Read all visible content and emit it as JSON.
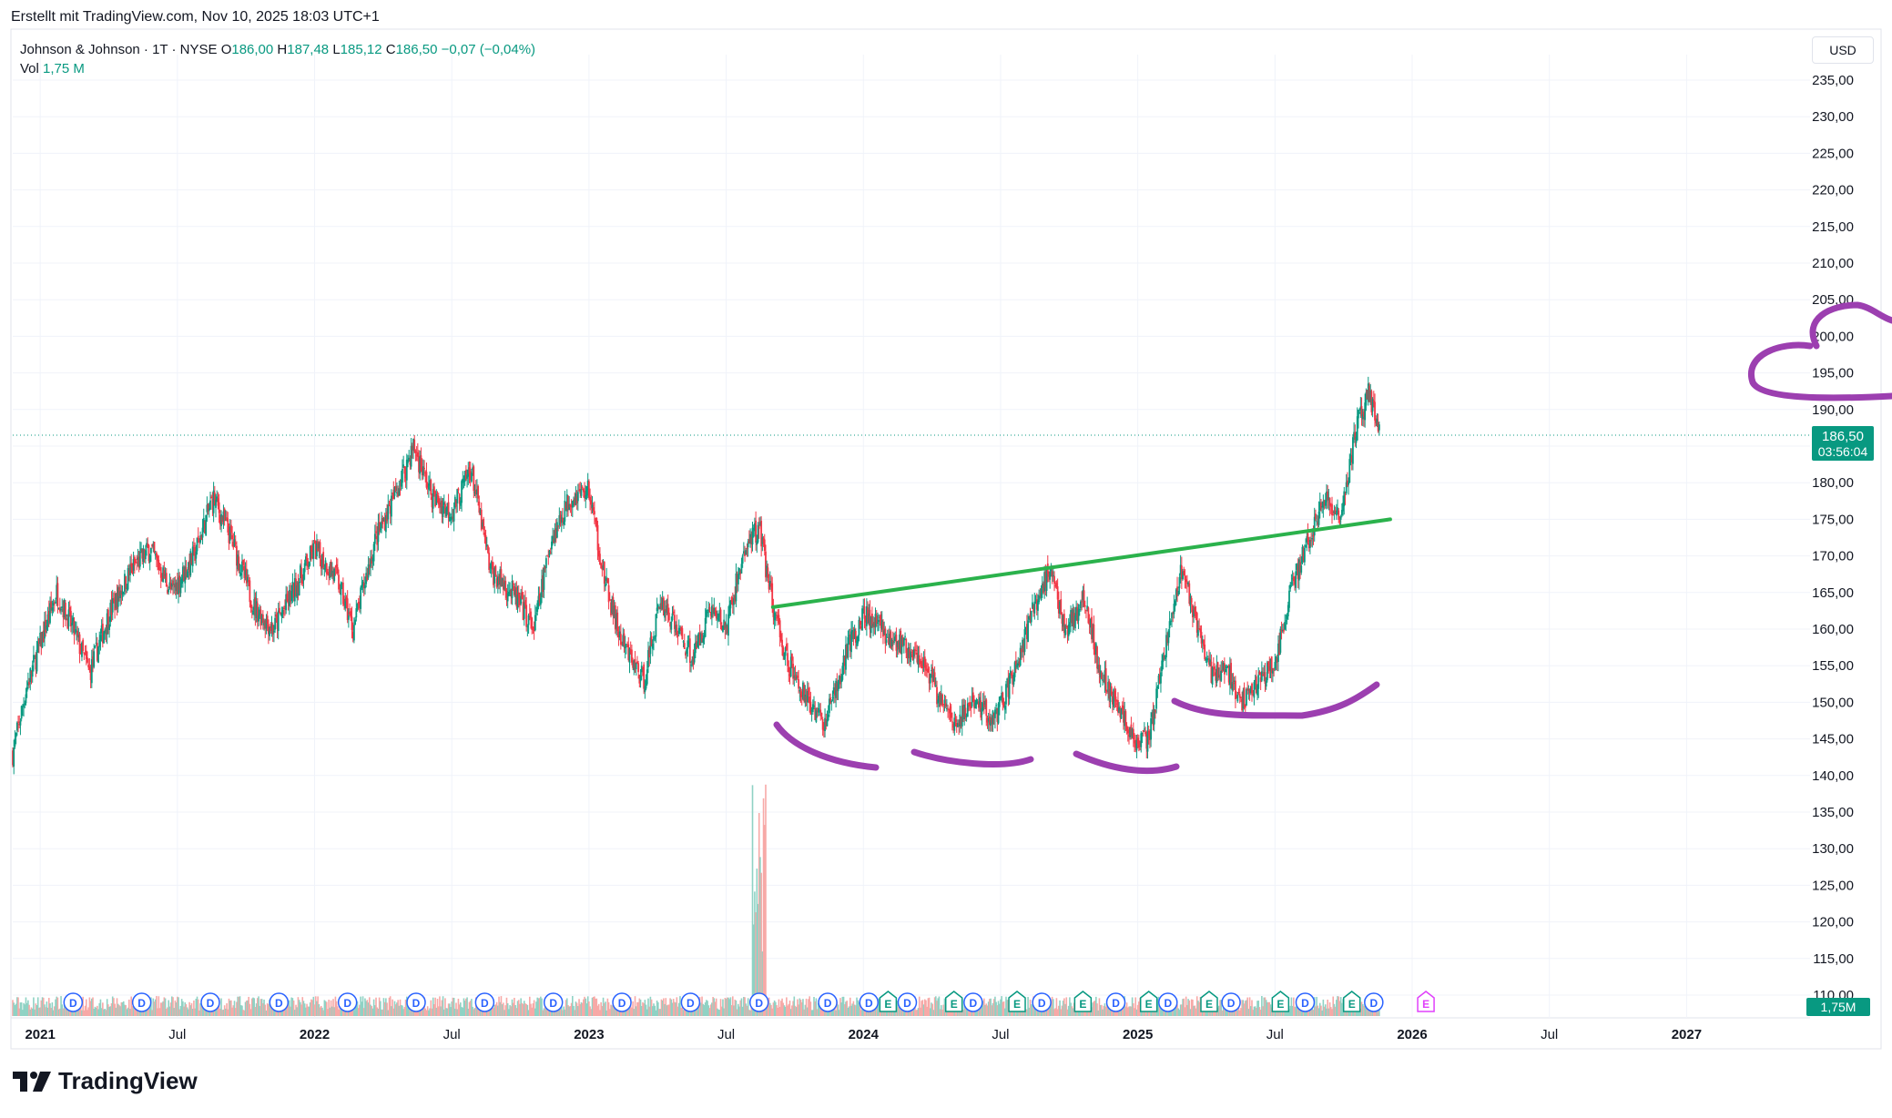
{
  "header": {
    "created_by": "Erstellt mit TradingView.com, Nov 10, 2025 18:03 UTC+1"
  },
  "legend": {
    "symbol": "Johnson & Johnson · 1T · NYSE",
    "o_label": "O",
    "o_value": "186,00",
    "h_label": "H",
    "h_value": "187,48",
    "l_label": "L",
    "l_value": "185,12",
    "c_label": "C",
    "c_value": "186,50",
    "change": "−0,07 (−0,04%)",
    "vol_label": "Vol",
    "vol_value": "1,75 M"
  },
  "currency": "USD",
  "brand": {
    "name": "TradingView"
  },
  "colors": {
    "up": "#089981",
    "down": "#f23645",
    "trendline": "#2bb24c",
    "annotation": "#9c3fb0",
    "price_tag": "#089981",
    "earnings": "#089981",
    "dividend": "#2962ff",
    "future_earnings": "#e040fb"
  },
  "price_tag": {
    "price": "186,50",
    "countdown": "03:56:04"
  },
  "volume_tag": "1,75M",
  "chart_data": {
    "type": "candlestick",
    "title": "Johnson & Johnson · 1T · NYSE",
    "ylim": [
      110,
      235
    ],
    "y_ticks": [
      "235,00",
      "230,00",
      "225,00",
      "220,00",
      "215,00",
      "210,00",
      "205,00",
      "200,00",
      "195,00",
      "190,00",
      "185,00",
      "180,00",
      "175,00",
      "170,00",
      "165,00",
      "160,00",
      "155,00",
      "150,00",
      "145,00",
      "140,00",
      "135,00",
      "130,00",
      "125,00",
      "120,00",
      "115,00",
      "110,00"
    ],
    "x_ticks": [
      {
        "label": "2021",
        "bold": true,
        "t": 2021.0
      },
      {
        "label": "Jul",
        "bold": false,
        "t": 2021.5
      },
      {
        "label": "2022",
        "bold": true,
        "t": 2022.0
      },
      {
        "label": "Jul",
        "bold": false,
        "t": 2022.5
      },
      {
        "label": "2023",
        "bold": true,
        "t": 2023.0
      },
      {
        "label": "Jul",
        "bold": false,
        "t": 2023.5
      },
      {
        "label": "2024",
        "bold": true,
        "t": 2024.0
      },
      {
        "label": "Jul",
        "bold": false,
        "t": 2024.5
      },
      {
        "label": "2025",
        "bold": true,
        "t": 2025.0
      },
      {
        "label": "Jul",
        "bold": false,
        "t": 2025.5
      },
      {
        "label": "2026",
        "bold": true,
        "t": 2026.0
      },
      {
        "label": "Jul",
        "bold": false,
        "t": 2026.5
      },
      {
        "label": "2027",
        "bold": true,
        "t": 2027.0
      }
    ],
    "price_path": [
      [
        2020.9,
        143
      ],
      [
        2020.95,
        152
      ],
      [
        2021.0,
        158
      ],
      [
        2021.06,
        165
      ],
      [
        2021.12,
        160
      ],
      [
        2021.18,
        154
      ],
      [
        2021.25,
        162
      ],
      [
        2021.33,
        168
      ],
      [
        2021.4,
        171
      ],
      [
        2021.48,
        165
      ],
      [
        2021.56,
        170
      ],
      [
        2021.63,
        178
      ],
      [
        2021.7,
        172
      ],
      [
        2021.78,
        163
      ],
      [
        2021.85,
        160
      ],
      [
        2021.92,
        165
      ],
      [
        2022.0,
        171
      ],
      [
        2022.08,
        167
      ],
      [
        2022.14,
        160
      ],
      [
        2022.22,
        172
      ],
      [
        2022.3,
        179
      ],
      [
        2022.36,
        185
      ],
      [
        2022.43,
        178
      ],
      [
        2022.5,
        176
      ],
      [
        2022.57,
        182
      ],
      [
        2022.64,
        168
      ],
      [
        2022.72,
        165
      ],
      [
        2022.8,
        160
      ],
      [
        2022.86,
        172
      ],
      [
        2022.93,
        178
      ],
      [
        2023.0,
        179
      ],
      [
        2023.06,
        166
      ],
      [
        2023.12,
        158
      ],
      [
        2023.2,
        153
      ],
      [
        2023.26,
        164
      ],
      [
        2023.32,
        160
      ],
      [
        2023.38,
        156
      ],
      [
        2023.44,
        163
      ],
      [
        2023.5,
        160
      ],
      [
        2023.56,
        170
      ],
      [
        2023.62,
        174
      ],
      [
        2023.66,
        165
      ],
      [
        2023.72,
        156
      ],
      [
        2023.8,
        150
      ],
      [
        2023.86,
        147
      ],
      [
        2023.94,
        157
      ],
      [
        2024.0,
        162
      ],
      [
        2024.06,
        160
      ],
      [
        2024.14,
        158
      ],
      [
        2024.22,
        156
      ],
      [
        2024.28,
        150
      ],
      [
        2024.34,
        147
      ],
      [
        2024.4,
        150
      ],
      [
        2024.48,
        148
      ],
      [
        2024.56,
        155
      ],
      [
        2024.62,
        163
      ],
      [
        2024.68,
        168
      ],
      [
        2024.74,
        160
      ],
      [
        2024.8,
        164
      ],
      [
        2024.86,
        155
      ],
      [
        2024.92,
        150
      ],
      [
        2024.98,
        145
      ],
      [
        2025.04,
        145
      ],
      [
        2025.1,
        157
      ],
      [
        2025.16,
        168
      ],
      [
        2025.22,
        160
      ],
      [
        2025.27,
        154
      ],
      [
        2025.32,
        155
      ],
      [
        2025.38,
        150
      ],
      [
        2025.44,
        153
      ],
      [
        2025.5,
        155
      ],
      [
        2025.56,
        166
      ],
      [
        2025.62,
        172
      ],
      [
        2025.68,
        178
      ],
      [
        2025.74,
        176
      ],
      [
        2025.8,
        188
      ],
      [
        2025.84,
        192
      ],
      [
        2025.86,
        190
      ],
      [
        2025.88,
        186.5
      ]
    ],
    "annotations": {
      "trendline": [
        [
          2023.67,
          163
        ],
        [
          2025.92,
          175
        ]
      ]
    },
    "event_markers": [
      {
        "label": "D",
        "t": 2021.12
      },
      {
        "label": "D",
        "t": 2021.37
      },
      {
        "label": "D",
        "t": 2021.62
      },
      {
        "label": "D",
        "t": 2021.87
      },
      {
        "label": "D",
        "t": 2022.12
      },
      {
        "label": "D",
        "t": 2022.37
      },
      {
        "label": "D",
        "t": 2022.62
      },
      {
        "label": "D",
        "t": 2022.87
      },
      {
        "label": "D",
        "t": 2023.12
      },
      {
        "label": "D",
        "t": 2023.37
      },
      {
        "label": "D",
        "t": 2023.62
      },
      {
        "label": "D",
        "t": 2023.87
      },
      {
        "label": "D",
        "t": 2024.02
      },
      {
        "label": "E",
        "t": 2024.09
      },
      {
        "label": "D",
        "t": 2024.16
      },
      {
        "label": "E",
        "t": 2024.33
      },
      {
        "label": "D",
        "t": 2024.4
      },
      {
        "label": "E",
        "t": 2024.56
      },
      {
        "label": "D",
        "t": 2024.65
      },
      {
        "label": "E",
        "t": 2024.8
      },
      {
        "label": "D",
        "t": 2024.92
      },
      {
        "label": "E",
        "t": 2025.04
      },
      {
        "label": "D",
        "t": 2025.11
      },
      {
        "label": "E",
        "t": 2025.26
      },
      {
        "label": "D",
        "t": 2025.34
      },
      {
        "label": "E",
        "t": 2025.52
      },
      {
        "label": "D",
        "t": 2025.61
      },
      {
        "label": "E",
        "t": 2025.78
      },
      {
        "label": "D",
        "t": 2025.86
      },
      {
        "label": "E",
        "t": 2026.05,
        "future": true
      }
    ]
  }
}
